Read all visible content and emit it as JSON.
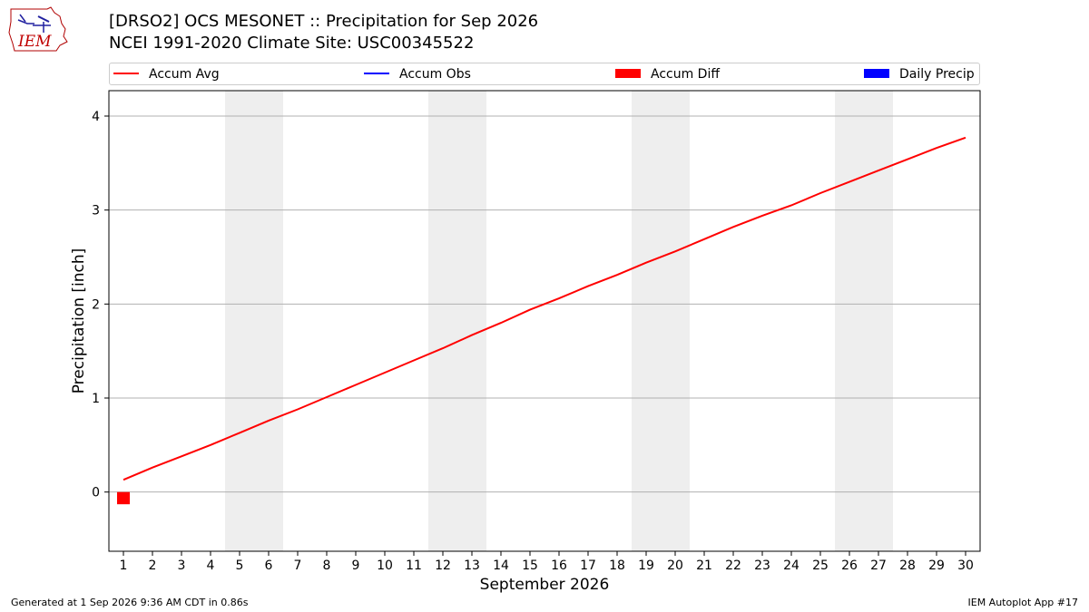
{
  "title_line1": "[DRSO2] OCS MESONET :: Precipitation for Sep 2026",
  "title_line2": "NCEI 1991-2020 Climate Site: USC00345522",
  "logo_text": "IEM",
  "footer_left": "Generated at 1 Sep 2026 9:36 AM CDT in 0.86s",
  "footer_right": "IEM Autoplot App #17",
  "legend": [
    {
      "label": "Accum Avg",
      "kind": "line",
      "color": "#ff0000"
    },
    {
      "label": "Accum Obs",
      "kind": "line",
      "color": "#0000ff"
    },
    {
      "label": "Accum Diff",
      "kind": "box",
      "color": "#ff0000"
    },
    {
      "label": "Daily Precip",
      "kind": "box",
      "color": "#0000ff"
    }
  ],
  "chart_data": {
    "type": "line",
    "xlabel": "September 2026",
    "ylabel": "Precipitation [inch]",
    "x": [
      1,
      2,
      3,
      4,
      5,
      6,
      7,
      8,
      9,
      10,
      11,
      12,
      13,
      14,
      15,
      16,
      17,
      18,
      19,
      20,
      21,
      22,
      23,
      24,
      25,
      26,
      27,
      28,
      29,
      30
    ],
    "xlim": [
      0.5,
      30.5
    ],
    "ylim": [
      -0.63,
      4.27
    ],
    "yticks": [
      0,
      1,
      2,
      3,
      4
    ],
    "grid": "horizontal",
    "weekend_shading": [
      [
        4.5,
        6.5
      ],
      [
        11.5,
        13.5
      ],
      [
        18.5,
        20.5
      ],
      [
        25.5,
        27.5
      ]
    ],
    "series": [
      {
        "name": "Accum Avg",
        "color": "#ff0000",
        "values": [
          0.13,
          0.26,
          0.38,
          0.5,
          0.63,
          0.76,
          0.88,
          1.01,
          1.14,
          1.27,
          1.4,
          1.53,
          1.67,
          1.8,
          1.94,
          2.06,
          2.19,
          2.31,
          2.44,
          2.56,
          2.69,
          2.82,
          2.94,
          3.05,
          3.18,
          3.3,
          3.42,
          3.54,
          3.66,
          3.77
        ]
      }
    ],
    "bars": [
      {
        "name": "Accum Diff",
        "color": "#ff0000",
        "x": [
          1
        ],
        "values": [
          -0.13
        ]
      }
    ]
  }
}
